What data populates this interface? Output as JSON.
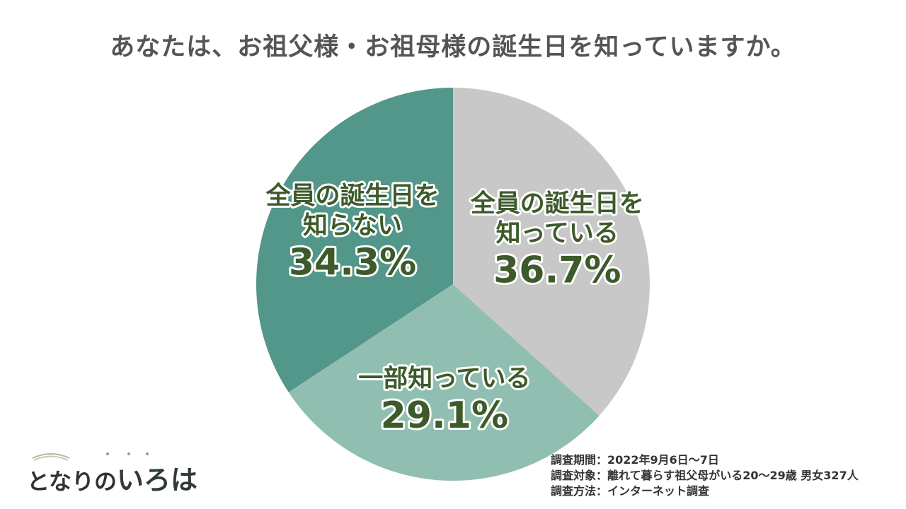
{
  "chart_data": {
    "type": "pie",
    "title": "あなたは、お祖父様・お祖母様の誕生日を知っていますか。",
    "slices": [
      {
        "label_line1": "全員の誕生日を",
        "label_line2": "知っている",
        "value": 36.7,
        "value_label": "36.7%",
        "color": "#c8c8c8"
      },
      {
        "label_line1": "一部知っている",
        "label_line2": "",
        "value": 29.1,
        "value_label": "29.1%",
        "color": "#90bfb2"
      },
      {
        "label_line1": "全員の誕生日を",
        "label_line2": "知らない",
        "value": 34.3,
        "value_label": "34.3%",
        "color": "#52978a"
      }
    ]
  },
  "logo": {
    "text_main": "となりの",
    "text_accent": "いろは",
    "color": "#2f3b34"
  },
  "notes": {
    "period": "調査期間：2022年9月6日～7日",
    "target": "調査対象：離れて暮らす祖父母がいる20～29歳 男女327人",
    "method": "調査方法：インターネット調査"
  }
}
